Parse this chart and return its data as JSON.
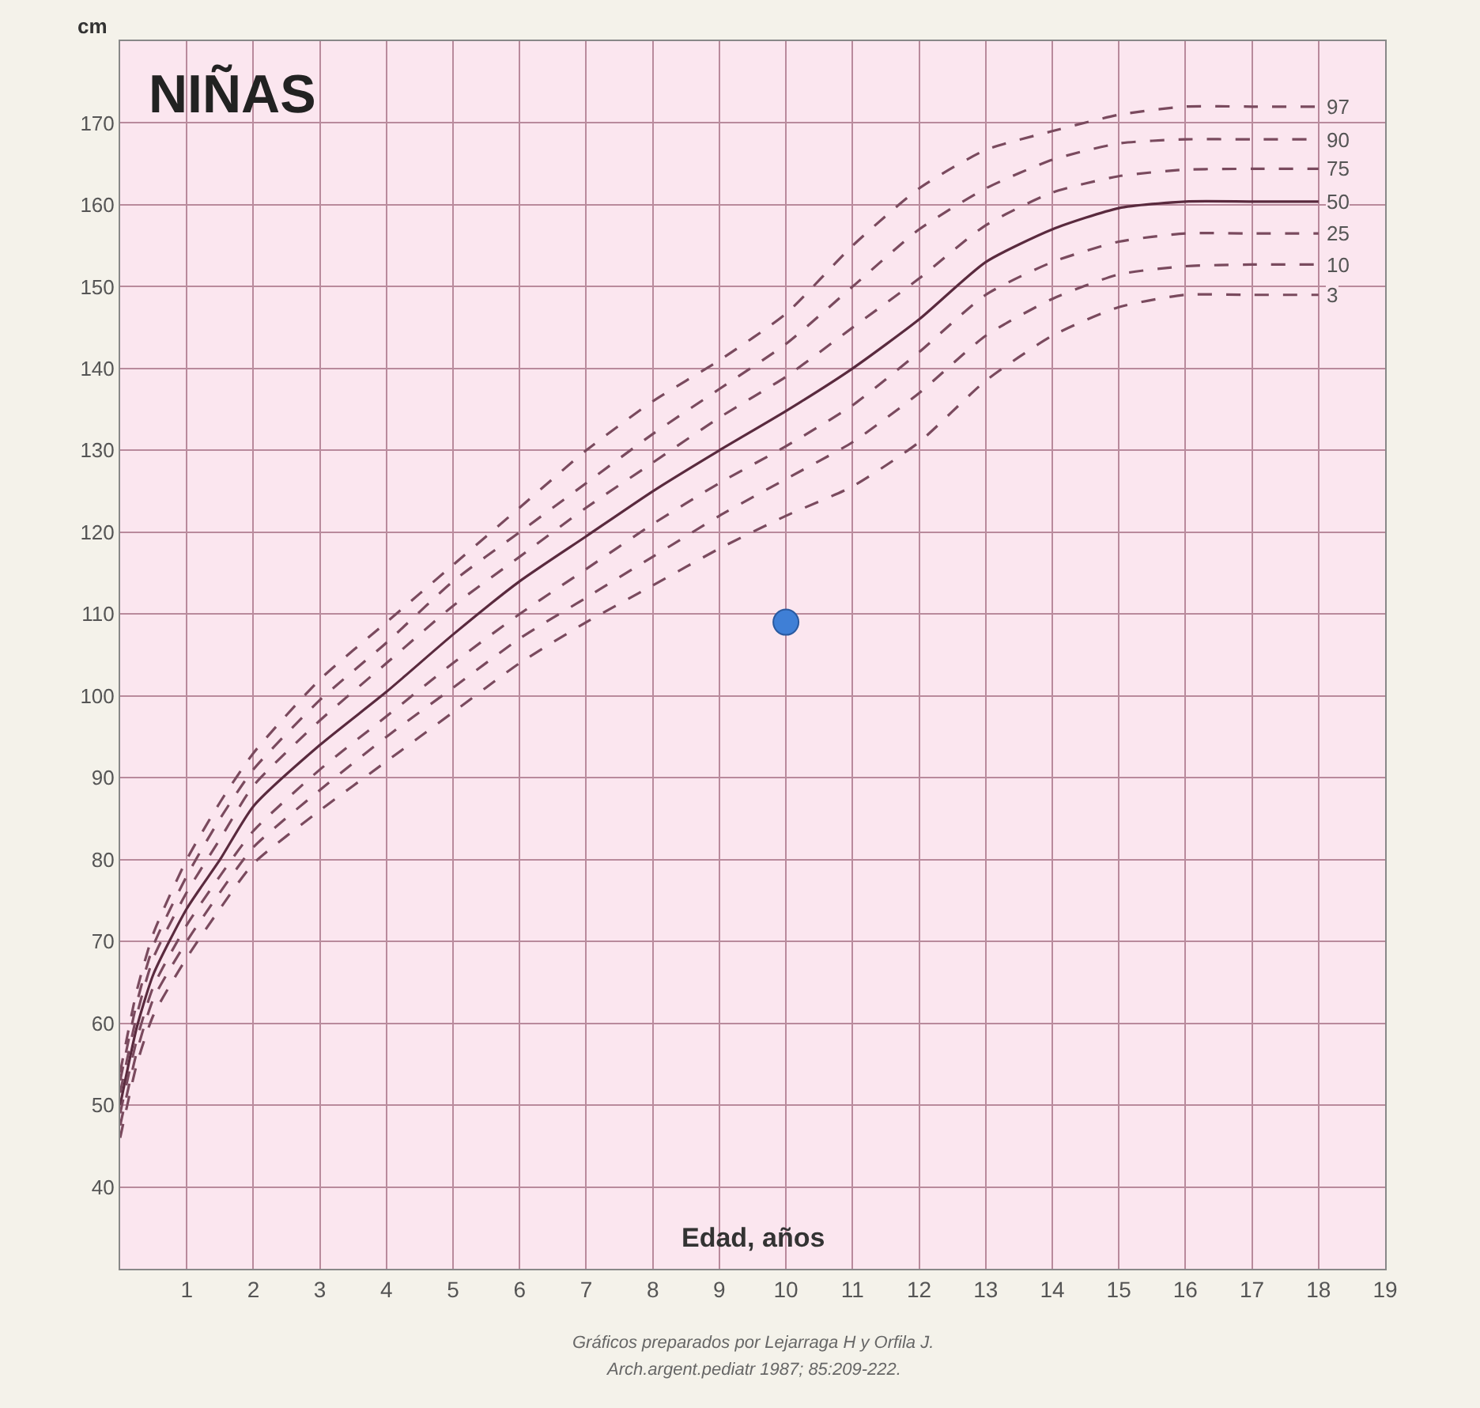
{
  "chart_data": {
    "type": "line",
    "title": "NIÑAS",
    "xlabel": "Edad, años",
    "ylabel": "cm",
    "x": [
      0,
      0.25,
      0.5,
      1,
      1.5,
      2,
      3,
      4,
      5,
      6,
      7,
      8,
      9,
      10,
      11,
      12,
      13,
      14,
      15,
      16,
      17,
      18
    ],
    "xlim": [
      0,
      19
    ],
    "xticks": [
      1,
      2,
      3,
      4,
      5,
      6,
      7,
      8,
      9,
      10,
      11,
      12,
      13,
      14,
      15,
      16,
      17,
      18,
      19
    ],
    "ylim": [
      30,
      180
    ],
    "yticks": [
      40,
      50,
      60,
      70,
      80,
      90,
      100,
      110,
      120,
      130,
      140,
      150,
      160,
      170
    ],
    "grid": true,
    "series": [
      {
        "name": "97",
        "color": "#7a4a5e",
        "line_style": "dashed",
        "values": [
          54,
          64,
          71,
          80,
          87,
          93,
          102,
          109,
          116,
          123,
          130,
          136,
          141,
          146.7,
          155,
          162,
          166.7,
          169,
          171,
          172,
          172,
          172
        ]
      },
      {
        "name": "90",
        "color": "#7a4a5e",
        "line_style": "dashed",
        "values": [
          53,
          62.5,
          69.5,
          78,
          85,
          91,
          99.5,
          106.5,
          114,
          120,
          126,
          132,
          137.5,
          143,
          150,
          157,
          162,
          165.5,
          167.5,
          168,
          168,
          168
        ]
      },
      {
        "name": "75",
        "color": "#7a4a5e",
        "line_style": "dashed",
        "values": [
          51.5,
          61,
          68,
          76,
          82.5,
          89,
          97,
          104,
          111,
          117,
          123,
          128.5,
          134,
          139,
          145,
          151,
          157.5,
          161.5,
          163.5,
          164.3,
          164.4,
          164.4
        ]
      },
      {
        "name": "50",
        "color": "#5a2a3e",
        "line_style": "solid",
        "values": [
          50,
          59.5,
          66,
          74,
          80,
          86.5,
          94,
          100.5,
          107.5,
          114,
          119.5,
          125,
          130,
          134.8,
          140,
          146,
          153,
          157,
          159.6,
          160.4,
          160.4,
          160.4
        ]
      },
      {
        "name": "25",
        "color": "#7a4a5e",
        "line_style": "dashed",
        "values": [
          49,
          58,
          64.5,
          72,
          78,
          83.5,
          91,
          97.5,
          104,
          110,
          115.5,
          121,
          126,
          130.5,
          135.5,
          142,
          149,
          153,
          155.5,
          156.5,
          156.5,
          156.5
        ]
      },
      {
        "name": "10",
        "color": "#7a4a5e",
        "line_style": "dashed",
        "values": [
          47.5,
          56.5,
          63,
          70,
          76,
          81.5,
          88.5,
          95,
          101,
          107,
          112,
          117,
          122,
          126.5,
          131,
          137,
          144,
          148.5,
          151.5,
          152.5,
          152.7,
          152.7
        ]
      },
      {
        "name": "3",
        "color": "#7a4a5e",
        "line_style": "dashed",
        "values": [
          46,
          55,
          61,
          68,
          74,
          79.5,
          86,
          92,
          98,
          104,
          109,
          113.5,
          118,
          122,
          125.6,
          131,
          138.5,
          144,
          147.5,
          149,
          149,
          149
        ]
      },
      {
        "type": "scatter",
        "marker": "circle",
        "color": "#3f7fd6",
        "x": [
          10
        ],
        "values": [
          109
        ]
      }
    ],
    "annotations": [
      "Gráficos preparados por Lejarraga H y Orfila J.",
      "Arch.argent.pediatr 1987; 85:209-222."
    ]
  }
}
